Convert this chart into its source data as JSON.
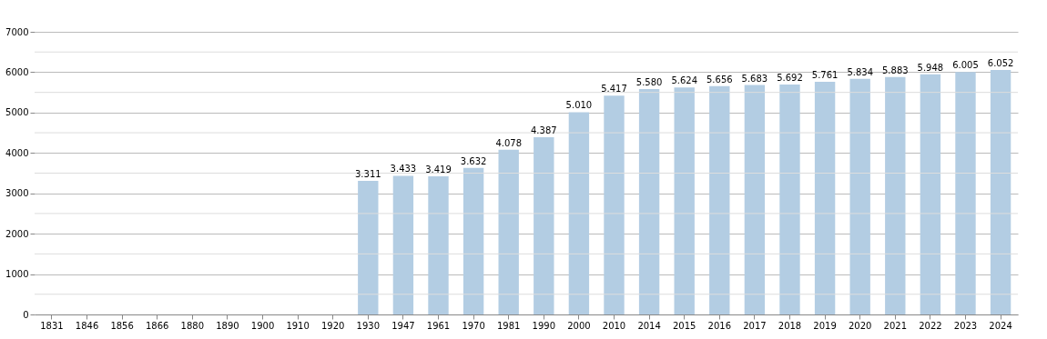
{
  "chart_data": {
    "type": "bar",
    "categories": [
      "1831",
      "1846",
      "1856",
      "1866",
      "1880",
      "1890",
      "1900",
      "1910",
      "1920",
      "1930",
      "1947",
      "1961",
      "1970",
      "1981",
      "1990",
      "2000",
      "2010",
      "2014",
      "2015",
      "2016",
      "2017",
      "2018",
      "2019",
      "2020",
      "2021",
      "2022",
      "2023",
      "2024"
    ],
    "values": [
      null,
      null,
      null,
      null,
      null,
      null,
      null,
      null,
      null,
      3311,
      3433,
      3419,
      3632,
      4078,
      4387,
      5010,
      5417,
      5580,
      5624,
      5656,
      5683,
      5692,
      5761,
      5834,
      5883,
      5948,
      6005,
      6052
    ],
    "value_labels": [
      null,
      null,
      null,
      null,
      null,
      null,
      null,
      null,
      null,
      "3.311",
      "3.433",
      "3.419",
      "3.632",
      "4.078",
      "4.387",
      "5.010",
      "5.417",
      "5.580",
      "5.624",
      "5.656",
      "5.683",
      "5.692",
      "5.761",
      "5.834",
      "5.883",
      "5.948",
      "6.005",
      "6.052"
    ],
    "color": "#b3cde3",
    "ylim": [
      0,
      7000
    ],
    "yticks": [
      0,
      {
        "value": 500,
        "label": null
      },
      1000,
      {
        "value": 1500,
        "label": null
      },
      2000,
      {
        "value": 2500,
        "label": null
      },
      3000,
      {
        "value": 3500,
        "label": null
      },
      4000,
      {
        "value": 4500,
        "label": null
      },
      5000,
      {
        "value": 5500,
        "label": null
      },
      6000,
      {
        "value": 6500,
        "label": null
      },
      7000
    ],
    "grid": "y"
  }
}
